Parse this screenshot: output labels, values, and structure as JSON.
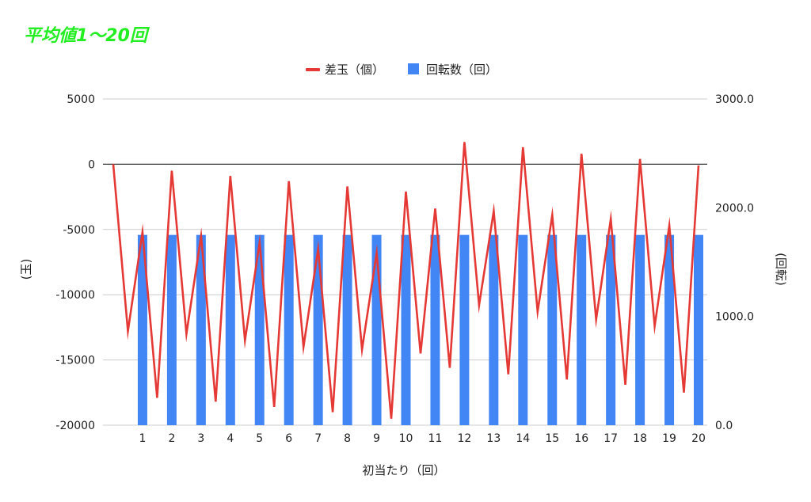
{
  "colors": {
    "title": "#22ee22",
    "bar": "#4285f4",
    "line": "#e53935",
    "grid": "#cccccc",
    "zero": "#333333"
  },
  "chart_data": {
    "type": "bar",
    "title": "平均値1〜20回",
    "xlabel": "初当たり（回）",
    "ylabel_left": "(玉)",
    "ylabel_right": "(回転)",
    "legend": {
      "position": "top",
      "items": [
        {
          "name": "差玉（個）",
          "kind": "line",
          "color": "#e53935"
        },
        {
          "name": "回転数（回）",
          "kind": "bar",
          "color": "#4285f4"
        }
      ]
    },
    "grid": true,
    "categories": [
      "1",
      "2",
      "3",
      "4",
      "5",
      "6",
      "7",
      "8",
      "9",
      "10",
      "11",
      "12",
      "13",
      "14",
      "15",
      "16",
      "17",
      "18",
      "19",
      "20"
    ],
    "left_axis": {
      "range": [
        -20000,
        5000
      ],
      "ticks": [
        5000,
        0,
        -5000,
        -10000,
        -15000,
        -20000
      ],
      "tick_labels": [
        "5000",
        "0",
        "-5000",
        "-10000",
        "-15000",
        "-20000"
      ]
    },
    "right_axis": {
      "range": [
        0,
        3000
      ],
      "ticks": [
        3000,
        2000,
        1000,
        0
      ],
      "tick_labels": [
        "3000.0",
        "2000.0",
        "1000.0",
        "0.0"
      ]
    },
    "series": [
      {
        "name": "回転数（回）",
        "type": "bar",
        "axis": "right",
        "values": [
          1750,
          1750,
          1750,
          1750,
          1750,
          1750,
          1750,
          1750,
          1750,
          1750,
          1750,
          1750,
          1750,
          1750,
          1750,
          1750,
          1750,
          1750,
          1750,
          1750
        ]
      },
      {
        "name": "差玉（個）",
        "type": "line",
        "axis": "left",
        "points": [
          [
            0.0,
            0
          ],
          [
            0.5,
            -12800
          ],
          [
            1.0,
            -5200
          ],
          [
            1.5,
            -17900
          ],
          [
            2.0,
            -500
          ],
          [
            2.5,
            -13000
          ],
          [
            3.0,
            -5500
          ],
          [
            3.5,
            -18200
          ],
          [
            4.0,
            -900
          ],
          [
            4.5,
            -13500
          ],
          [
            5.0,
            -6000
          ],
          [
            5.5,
            -18600
          ],
          [
            6.0,
            -1300
          ],
          [
            6.5,
            -14000
          ],
          [
            7.0,
            -6500
          ],
          [
            7.5,
            -19000
          ],
          [
            8.0,
            -1700
          ],
          [
            8.5,
            -14200
          ],
          [
            9.0,
            -6800
          ],
          [
            9.5,
            -19500
          ],
          [
            10.0,
            -2100
          ],
          [
            10.5,
            -14500
          ],
          [
            11.0,
            -3400
          ],
          [
            11.5,
            -15600
          ],
          [
            12.0,
            1700
          ],
          [
            12.5,
            -10800
          ],
          [
            13.0,
            -3600
          ],
          [
            13.5,
            -16100
          ],
          [
            14.0,
            1300
          ],
          [
            14.5,
            -11300
          ],
          [
            15.0,
            -3900
          ],
          [
            15.5,
            -16500
          ],
          [
            16.0,
            800
          ],
          [
            16.5,
            -11900
          ],
          [
            17.0,
            -4200
          ],
          [
            17.5,
            -16900
          ],
          [
            18.0,
            400
          ],
          [
            18.5,
            -12400
          ],
          [
            19.0,
            -4700
          ],
          [
            19.5,
            -17500
          ],
          [
            20.0,
            -100
          ]
        ]
      }
    ]
  }
}
